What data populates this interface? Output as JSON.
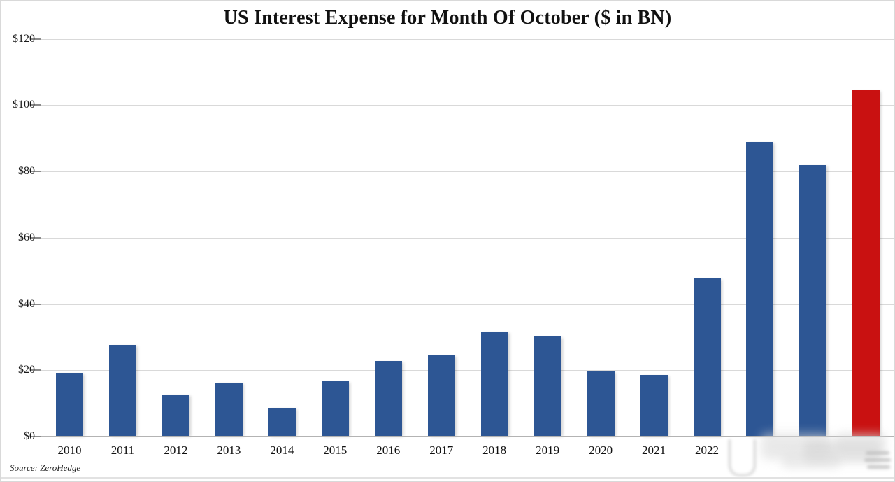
{
  "page": {
    "title": "US Interest Expense for Month Of October ($ in BN)",
    "source_note": "Source: ZeroHedge"
  },
  "chart_data": {
    "type": "bar",
    "title": "US Interest Expense for Month Of October ($ in BN)",
    "categories": [
      "2010",
      "2011",
      "2012",
      "2013",
      "2014",
      "2015",
      "2016",
      "2017",
      "2018",
      "2019",
      "2020",
      "2021",
      "2022",
      "",
      "",
      ""
    ],
    "values": [
      19.3,
      27.6,
      12.7,
      16.2,
      8.6,
      16.6,
      22.9,
      24.4,
      31.6,
      30.2,
      19.7,
      18.6,
      47.6,
      88.9,
      82.0,
      104.5
    ],
    "unit": "$ BN",
    "xlabel": "",
    "ylabel": "",
    "ylim": [
      0,
      120
    ],
    "yticks": [
      0,
      20,
      40,
      60,
      80,
      100,
      120
    ],
    "ytick_labels": [
      "$0",
      "$20",
      "$40",
      "$60",
      "$80",
      "$100",
      "$120"
    ],
    "grid": true,
    "legend": "none",
    "bar_color": "#2D5694",
    "highlight_color": "#C91111",
    "highlight_index": 15,
    "x_labels_blurred_from_index": 13
  },
  "colors": {
    "background": "#FFFFFF",
    "gridline": "#D9D9D9",
    "baseline": "#B3B3B3",
    "tick": "#8C8C8C",
    "text": "#111111"
  }
}
